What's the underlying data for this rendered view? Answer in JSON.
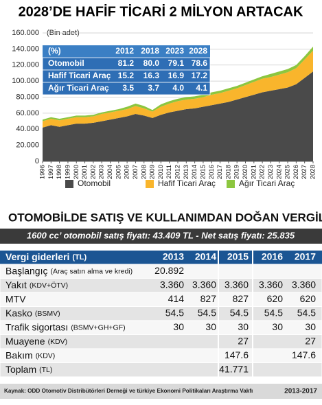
{
  "chart_data": {
    "type": "area",
    "stacked": true,
    "title": "2028’DE HAFİF TİCARİ 2 MİLYON ARTACAK",
    "y_label": "(Bin adet)",
    "categories": [
      "1996",
      "1997",
      "1998",
      "1999",
      "2000",
      "2001",
      "2002",
      "2003",
      "2004",
      "2005",
      "2006",
      "2007",
      "2008",
      "2009",
      "2010",
      "2011",
      "2012",
      "2013",
      "2014",
      "2015",
      "2016",
      "2017",
      "2018",
      "2019",
      "2020",
      "2021",
      "2022",
      "2023",
      "2024",
      "2025",
      "2026",
      "2027",
      "2028"
    ],
    "series": [
      {
        "name": "Otomobil",
        "color": "#4a4a4a",
        "values": [
          42000,
          45000,
          43000,
          45000,
          47000,
          47000,
          48000,
          50000,
          52000,
          54000,
          56000,
          59000,
          57000,
          54000,
          58000,
          61000,
          63000,
          65000,
          66000,
          68000,
          70000,
          72000,
          74000,
          77000,
          80000,
          83000,
          86000,
          88000,
          90000,
          92000,
          96000,
          104000,
          112000
        ]
      },
      {
        "name": "Hafif Ticari Araç",
        "color": "#f9b52c",
        "values": [
          8000,
          8000,
          8000,
          8000,
          8000,
          8000,
          8000,
          9000,
          9000,
          9000,
          9000,
          10000,
          9000,
          8000,
          10000,
          11000,
          12000,
          12000,
          12000,
          12000,
          13000,
          13000,
          14000,
          14000,
          15000,
          16000,
          17000,
          17000,
          18000,
          19000,
          20000,
          23000,
          26000
        ]
      },
      {
        "name": "Ağır Ticari Araç",
        "color": "#8cc63f",
        "values": [
          2000,
          2000,
          2000,
          2000,
          2000,
          2000,
          2000,
          2000,
          2000,
          2000,
          3000,
          3000,
          3000,
          2000,
          3000,
          3000,
          3000,
          3000,
          3000,
          3000,
          3000,
          3000,
          3000,
          3000,
          3000,
          3000,
          3000,
          4000,
          4000,
          4000,
          4000,
          4000,
          5000
        ]
      }
    ],
    "ylim": [
      0,
      160000
    ],
    "yticks": [
      0,
      {
        "value": 20000,
        "label": "20.000"
      },
      {
        "value": 40000,
        "label": "40.000"
      },
      {
        "value": 60000,
        "label": "60.000"
      },
      {
        "value": 80000,
        "label": "80.000"
      },
      {
        "value": 100000,
        "label": "100.000"
      },
      {
        "value": 120000,
        "label": "120.000"
      },
      {
        "value": 140000,
        "label": "140.000"
      },
      {
        "value": 160000,
        "label": "160.000"
      }
    ],
    "grid": true
  },
  "inset_table": {
    "header": [
      "(%)",
      "2012",
      "2018",
      "2023",
      "2028"
    ],
    "rows": [
      [
        "Otomobil",
        "81.2",
        "80.0",
        "79.1",
        "78.6"
      ],
      [
        "Hafif Ticari Araç",
        "15.2",
        "16.3",
        "16.9",
        "17.2"
      ],
      [
        "Ağır Ticari Araç",
        "3.5",
        "3.7",
        "4.0",
        "4.1"
      ]
    ]
  },
  "tax_section": {
    "title": "OTOMOBİLDE  SATIŞ VE KULLANIMDAN DOĞAN VERGİLER",
    "subtitle": "1600 cc’ otomobil satış fiyatı: 43.409 TL - Net satış fiyatı: 25.835",
    "header": {
      "label": "Vergi giderleri",
      "note": "(TL)",
      "years": [
        "2013",
        "2014",
        "2015",
        "2016",
        "2017"
      ]
    },
    "rows": [
      {
        "label": "Başlangıç",
        "note": "(Araç satın alma ve kredi)",
        "cells": [
          "20.892",
          null,
          null,
          null,
          null
        ]
      },
      {
        "label": "Yakıt",
        "note": "(KDV+ÖTV)",
        "cells": [
          "3.360",
          "3.360",
          "3.360",
          "3.360",
          "3.360"
        ]
      },
      {
        "label": "MTV",
        "cells": [
          "414",
          "827",
          "827",
          "620",
          "620"
        ]
      },
      {
        "label": "Kasko",
        "note": "(BSMV)",
        "cells": [
          "54.5",
          "54.5",
          "54.5",
          "54.5",
          "54.5"
        ]
      },
      {
        "label": "Trafik sigortası",
        "note": "(BSMV+GH+GF)",
        "cells": [
          "30",
          "30",
          "30",
          "30",
          "30"
        ]
      },
      {
        "label": "Muayene",
        "note": "(KDV)",
        "cells": [
          null,
          null,
          "27",
          null,
          "27"
        ]
      },
      {
        "label": "Bakım",
        "note": "(KDV)",
        "cells": [
          null,
          null,
          "147.6",
          null,
          "147.6"
        ]
      },
      {
        "label": "Toplam",
        "note": "(TL)",
        "cells": [
          null,
          null,
          "41.771",
          null,
          null
        ]
      }
    ],
    "source": "Kaynak: ODD Otomotiv Distribütörleri Derneği ve türkiye Ekonomi Politikaları Araştırma Vakfı",
    "period": "2013-2017"
  }
}
